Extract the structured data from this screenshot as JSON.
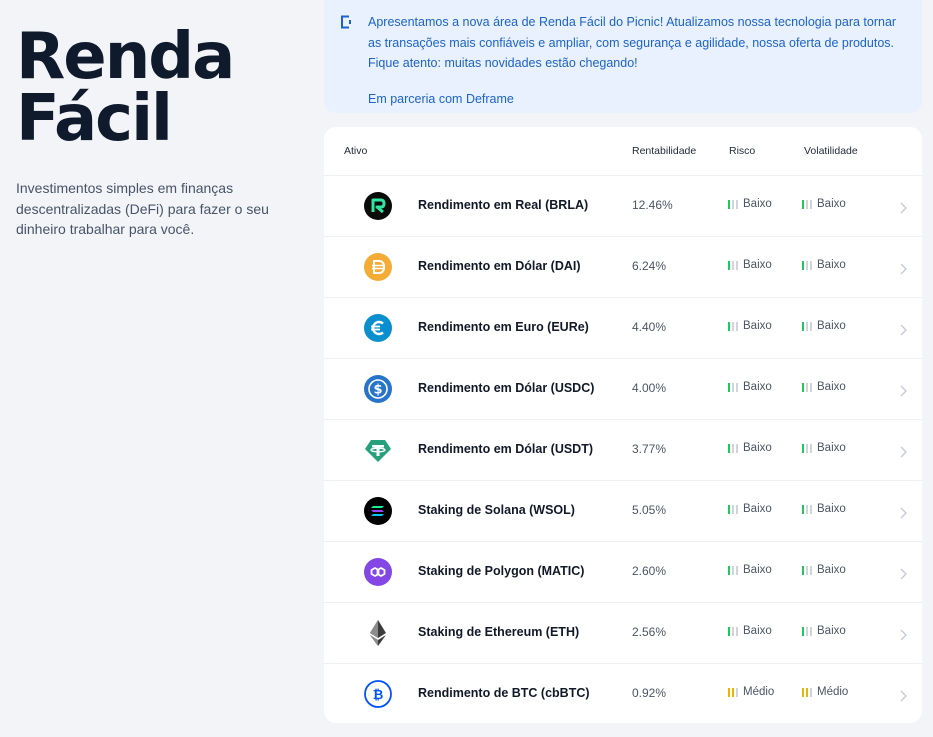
{
  "hero": {
    "title_line1": "Renda",
    "title_line2": "Fácil",
    "description": "Investimentos simples em finanças descentralizadas (DeFi) para fazer o seu dinheiro trabalhar para você."
  },
  "notice": {
    "text": "Apresentamos a nova área de Renda Fácil do Picnic! Atualizamos nossa tecnologia para tornar as transações mais confiáveis e ampliar, com segurança e agilidade, nossa oferta de produtos. Fique atento: muitas novidades estão chegando!",
    "link": "Em parceria com Deframe",
    "icon": "info-icon"
  },
  "table": {
    "headers": {
      "asset": "Ativo",
      "yield": "Rentabilidade",
      "risk": "Risco",
      "volatility": "Volatilidade"
    },
    "rows": [
      {
        "name": "Rendimento em Real (BRLA)",
        "rate": "12.46%",
        "risk": "Baixo",
        "volatility": "Baixo",
        "icon": "brla-icon",
        "color": "#0b0b0b"
      },
      {
        "name": "Rendimento em Dólar (DAI)",
        "rate": "6.24%",
        "risk": "Baixo",
        "volatility": "Baixo",
        "icon": "dai-icon",
        "color": "#f5ac37"
      },
      {
        "name": "Rendimento em Euro (EURe)",
        "rate": "4.40%",
        "risk": "Baixo",
        "volatility": "Baixo",
        "icon": "eure-icon",
        "color": "#0a8fce"
      },
      {
        "name": "Rendimento em Dólar (USDC)",
        "rate": "4.00%",
        "risk": "Baixo",
        "volatility": "Baixo",
        "icon": "usdc-icon",
        "color": "#2775ca"
      },
      {
        "name": "Rendimento em Dólar (USDT)",
        "rate": "3.77%",
        "risk": "Baixo",
        "volatility": "Baixo",
        "icon": "usdt-icon",
        "color": "#26a17b"
      },
      {
        "name": "Staking de Solana (WSOL)",
        "rate": "5.05%",
        "risk": "Baixo",
        "volatility": "Baixo",
        "icon": "solana-icon",
        "color": "#000000"
      },
      {
        "name": "Staking de Polygon (MATIC)",
        "rate": "2.60%",
        "risk": "Baixo",
        "volatility": "Baixo",
        "icon": "polygon-icon",
        "color": "#8247e5"
      },
      {
        "name": "Staking de Ethereum (ETH)",
        "rate": "2.56%",
        "risk": "Baixo",
        "volatility": "Baixo",
        "icon": "ethereum-icon",
        "color": "#3c3c3d"
      },
      {
        "name": "Rendimento de BTC (cbBTC)",
        "rate": "0.92%",
        "risk": "Médio",
        "volatility": "Médio",
        "icon": "cbbtc-icon",
        "color": "#0052ff"
      }
    ]
  },
  "colors": {
    "risk_low": "#22c55e",
    "risk_medium": "#eab308",
    "notice_text": "#1d63c8",
    "notice_bg": "#e8f1fd"
  }
}
